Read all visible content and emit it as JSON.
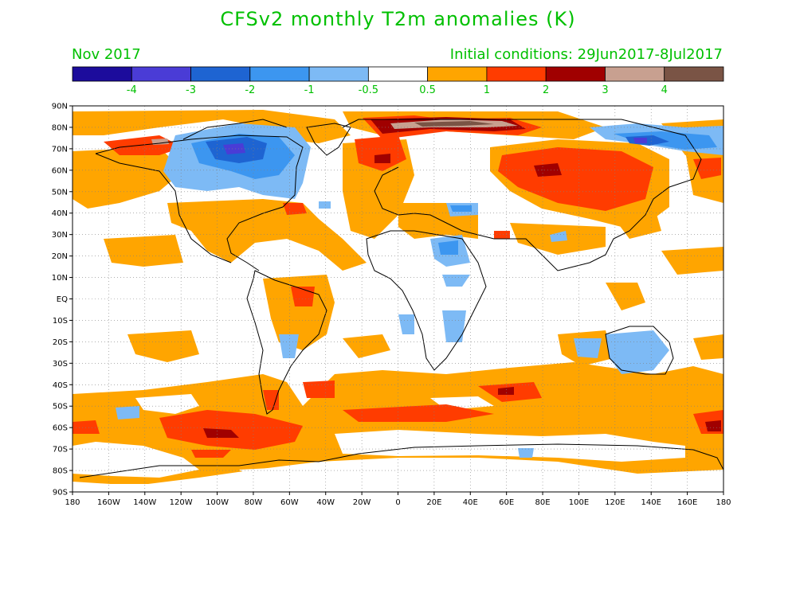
{
  "header": {
    "title": "CFSv2 monthly T2m anomalies (K)",
    "month": "Nov 2017",
    "initial_conditions": "Initial conditions: 29Jun2017-8Jul2017"
  },
  "colorbar": {
    "colors": [
      "#1c0c9c",
      "#4a3cd6",
      "#1e64d2",
      "#3c96f0",
      "#7dbaf5",
      "#ffffff",
      "#ffa500",
      "#ff3c00",
      "#a00000",
      "#c8a090",
      "#7a5445"
    ],
    "labels": [
      "-4",
      "-3",
      "-2",
      "-1",
      "-0.5",
      "0.5",
      "1",
      "2",
      "3",
      "4"
    ]
  },
  "lat_labels": [
    "90N",
    "80N",
    "70N",
    "60N",
    "50N",
    "40N",
    "30N",
    "20N",
    "10N",
    "EQ",
    "10S",
    "20S",
    "30S",
    "40S",
    "50S",
    "60S",
    "70S",
    "80S",
    "90S"
  ],
  "lon_labels": [
    "180",
    "160W",
    "140W",
    "120W",
    "100W",
    "80W",
    "60W",
    "40W",
    "20W",
    "0",
    "20E",
    "40E",
    "60E",
    "80E",
    "100E",
    "120E",
    "140E",
    "160E",
    "180"
  ]
}
